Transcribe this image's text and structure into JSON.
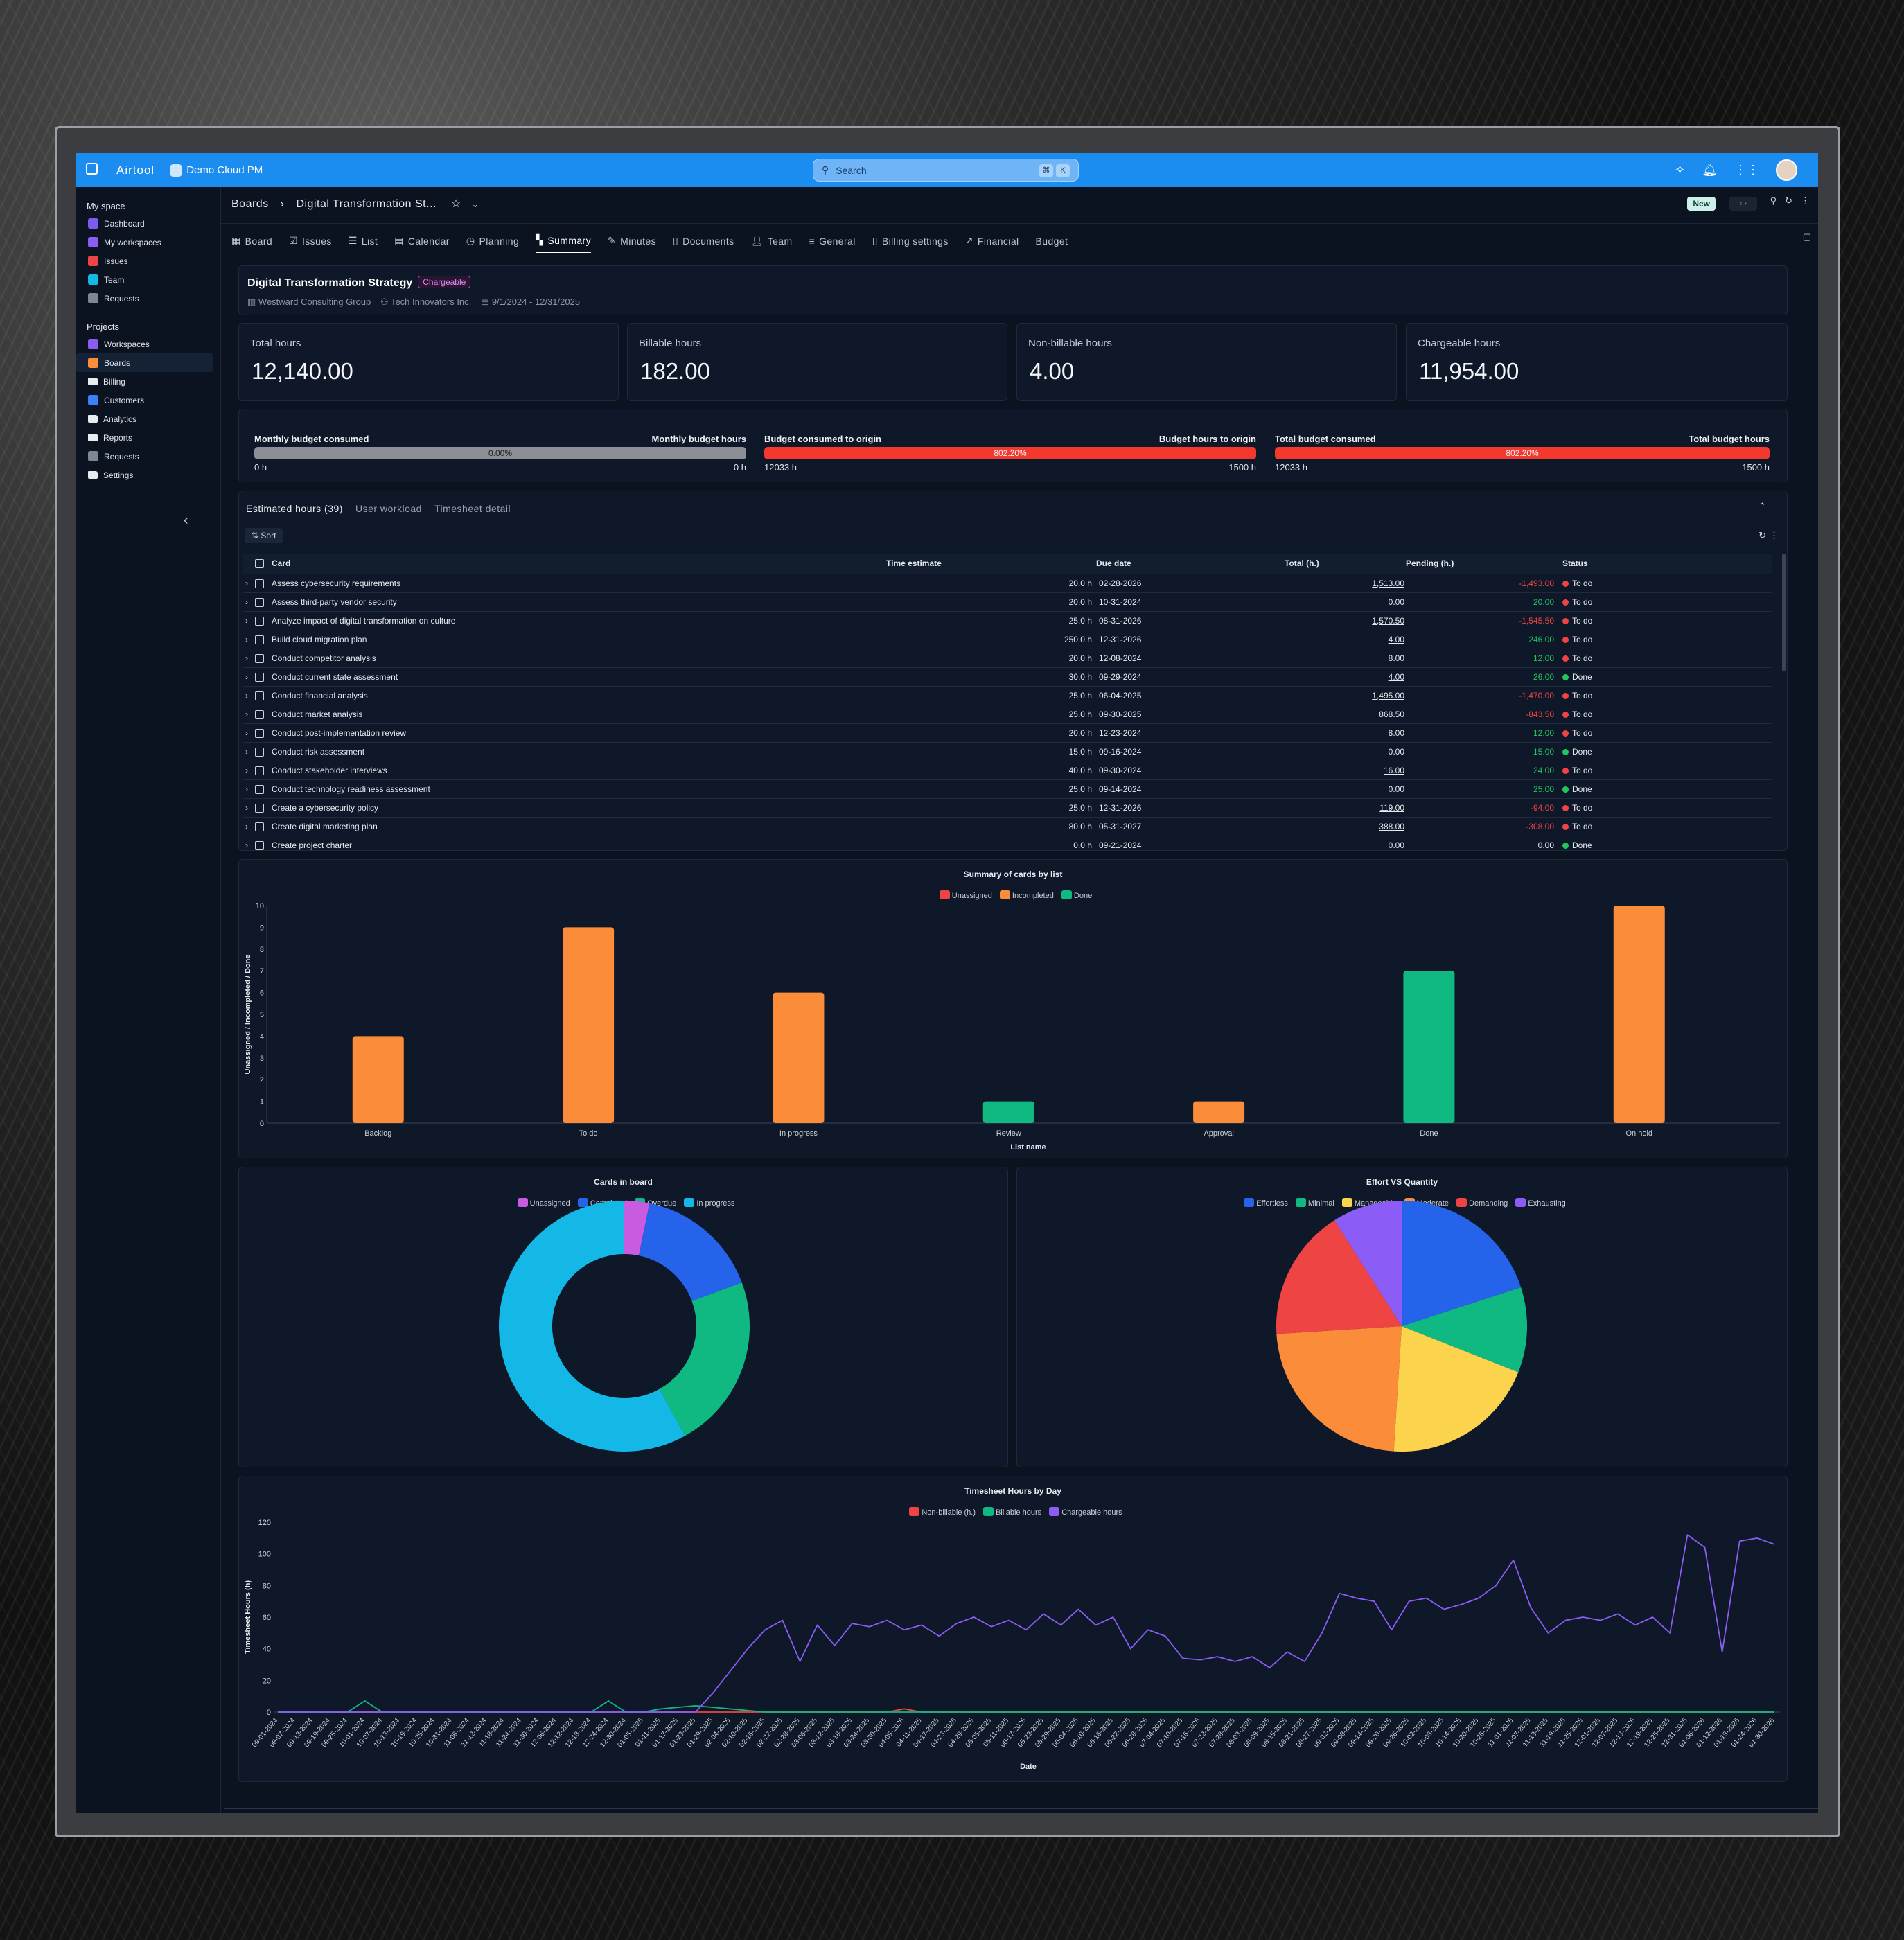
{
  "app": {
    "name": "Airtool",
    "workspace": "Demo Cloud PM",
    "search_placeholder": "Search",
    "kbd1": "⌘",
    "kbd2": "K"
  },
  "sidebar": {
    "my_space": "My space",
    "my_items": [
      "Dashboard",
      "My workspaces",
      "Issues",
      "Team",
      "Requests"
    ],
    "projects": "Projects",
    "project_items": [
      "Workspaces",
      "Boards",
      "Billing",
      "Customers",
      "Analytics",
      "Reports",
      "Requests",
      "Settings"
    ]
  },
  "breadcrumb": {
    "root": "Boards",
    "current": "Digital Transformation St..."
  },
  "new_label": "New",
  "tabs": [
    "Board",
    "Issues",
    "List",
    "Calendar",
    "Planning",
    "Summary",
    "Minutes",
    "Documents",
    "Team",
    "General",
    "Billing settings",
    "Financial",
    "Budget"
  ],
  "project": {
    "title": "Digital Transformation Strategy",
    "badge": "Chargeable",
    "client": "Westward Consulting Group",
    "provider": "Tech Innovators Inc.",
    "dates": "9/1/2024 - 12/31/2025"
  },
  "stats": [
    {
      "label": "Total hours",
      "value": "12,140.00"
    },
    {
      "label": "Billable hours",
      "value": "182.00"
    },
    {
      "label": "Non-billable hours",
      "value": "4.00"
    },
    {
      "label": "Chargeable hours",
      "value": "11,954.00"
    }
  ],
  "budgets": [
    {
      "left": "Monthly budget consumed",
      "right": "Monthly budget hours",
      "bar": "0.00%",
      "pct": 0,
      "from": "0 h",
      "to": "0 h"
    },
    {
      "left": "Budget consumed to origin",
      "right": "Budget hours to origin",
      "bar": "802.20%",
      "pct": 100,
      "from": "12033 h",
      "to": "1500 h"
    },
    {
      "left": "Total budget consumed",
      "right": "Total budget hours",
      "bar": "802.20%",
      "pct": 100,
      "from": "12033 h",
      "to": "1500 h"
    }
  ],
  "subtabs": [
    "Estimated hours (39)",
    "User workload",
    "Timesheet detail"
  ],
  "sort_label": "Sort",
  "table": {
    "headers": [
      "Card",
      "Time estimate",
      "Due date",
      "Total (h.)",
      "Pending (h.)",
      "Status"
    ],
    "rows": [
      [
        "Assess cybersecurity requirements",
        "20.0 h",
        "02-28-2026",
        "1,513.00",
        "-1,493.00",
        "To do"
      ],
      [
        "Assess third-party vendor security",
        "20.0 h",
        "10-31-2024",
        "0.00",
        "20.00",
        "To do"
      ],
      [
        "Analyze impact of digital transformation on culture",
        "25.0 h",
        "08-31-2026",
        "1,570.50",
        "-1,545.50",
        "To do"
      ],
      [
        "Build cloud migration plan",
        "250.0 h",
        "12-31-2026",
        "4.00",
        "246.00",
        "To do"
      ],
      [
        "Conduct competitor analysis",
        "20.0 h",
        "12-08-2024",
        "8.00",
        "12.00",
        "To do"
      ],
      [
        "Conduct current state assessment",
        "30.0 h",
        "09-29-2024",
        "4.00",
        "26.00",
        "Done"
      ],
      [
        "Conduct financial analysis",
        "25.0 h",
        "06-04-2025",
        "1,495.00",
        "-1,470.00",
        "To do"
      ],
      [
        "Conduct market analysis",
        "25.0 h",
        "09-30-2025",
        "868.50",
        "-843.50",
        "To do"
      ],
      [
        "Conduct post-implementation review",
        "20.0 h",
        "12-23-2024",
        "8.00",
        "12.00",
        "To do"
      ],
      [
        "Conduct risk assessment",
        "15.0 h",
        "09-16-2024",
        "0.00",
        "15.00",
        "Done"
      ],
      [
        "Conduct stakeholder interviews",
        "40.0 h",
        "09-30-2024",
        "16.00",
        "24.00",
        "To do"
      ],
      [
        "Conduct technology readiness assessment",
        "25.0 h",
        "09-14-2024",
        "0.00",
        "25.00",
        "Done"
      ],
      [
        "Create a cybersecurity policy",
        "25.0 h",
        "12-31-2026",
        "119.00",
        "-94.00",
        "To do"
      ],
      [
        "Create digital marketing plan",
        "80.0 h",
        "05-31-2027",
        "388.00",
        "-308.00",
        "To do"
      ],
      [
        "Create project charter",
        "0.0 h",
        "09-21-2024",
        "0.00",
        "0.00",
        "Done"
      ]
    ]
  },
  "colors": {
    "red": "#ef4444",
    "orange": "#fb8c3a",
    "green": "#10b981",
    "blue": "#2563eb",
    "cyan": "#14b8e6",
    "purple": "#8b5cf6",
    "magenta": "#c95be0",
    "yellow": "#fcd34d",
    "todo": "#ef4444",
    "done": "#22c55e"
  },
  "chart_data": [
    {
      "type": "bar",
      "title": "Summary of cards by list",
      "xlabel": "List name",
      "ylabel": "Unassigned / Incompleted / Done",
      "categories": [
        "Backlog",
        "To do",
        "In progress",
        "Review",
        "Approval",
        "Done",
        "On hold"
      ],
      "series": [
        {
          "name": "Unassigned",
          "values": [
            0,
            0,
            0,
            0,
            0,
            0,
            0
          ]
        },
        {
          "name": "Incompleted",
          "values": [
            4,
            9,
            6,
            0,
            1,
            0,
            10
          ]
        },
        {
          "name": "Done",
          "values": [
            0,
            0,
            0,
            1,
            0,
            7,
            0
          ]
        }
      ],
      "ylim": [
        0,
        10
      ],
      "yticks": [
        0,
        1,
        2,
        3,
        4,
        5,
        6,
        7,
        8,
        9,
        10
      ],
      "legend": "top"
    },
    {
      "type": "pie",
      "title": "Cards in board",
      "donut": true,
      "labels": [
        "Unassigned",
        "Completed",
        "Overdue",
        "In progress"
      ],
      "values": [
        1,
        5,
        7,
        18
      ],
      "legend": "top"
    },
    {
      "type": "pie",
      "title": "Effort VS Quantity",
      "donut": false,
      "labels": [
        "Effortless",
        "Minimal",
        "Manageable",
        "Moderate",
        "Demanding",
        "Exhausting"
      ],
      "values": [
        20,
        11,
        20,
        23,
        17,
        9
      ],
      "legend": "top"
    },
    {
      "type": "line",
      "title": "Timesheet Hours by Day",
      "xlabel": "Date",
      "ylabel": "Timesheet Hours (h)",
      "ylim": [
        0,
        120
      ],
      "yticks": [
        0,
        20,
        40,
        60,
        80,
        100,
        120
      ],
      "x": [
        "09-01-2024",
        "09-07-2024",
        "09-13-2024",
        "09-19-2024",
        "09-25-2024",
        "10-01-2024",
        "10-07-2024",
        "10-13-2024",
        "10-19-2024",
        "10-25-2024",
        "10-31-2024",
        "11-06-2024",
        "11-12-2024",
        "11-18-2024",
        "11-24-2024",
        "11-30-2024",
        "12-06-2024",
        "12-12-2024",
        "12-18-2024",
        "12-24-2024",
        "12-30-2024",
        "01-05-2025",
        "01-11-2025",
        "01-17-2025",
        "01-23-2025",
        "01-29-2025",
        "02-04-2025",
        "02-10-2025",
        "02-16-2025",
        "02-22-2025",
        "02-28-2025",
        "03-06-2025",
        "03-12-2025",
        "03-18-2025",
        "03-24-2025",
        "03-30-2025",
        "04-05-2025",
        "04-11-2025",
        "04-17-2025",
        "04-23-2025",
        "04-29-2025",
        "05-05-2025",
        "05-11-2025",
        "05-17-2025",
        "05-23-2025",
        "05-29-2025",
        "06-04-2025",
        "06-10-2025",
        "06-16-2025",
        "06-22-2025",
        "06-28-2025",
        "07-04-2025",
        "07-10-2025",
        "07-16-2025",
        "07-22-2025",
        "07-28-2025",
        "08-03-2025",
        "08-09-2025",
        "08-15-2025",
        "08-21-2025",
        "08-27-2025",
        "09-02-2025",
        "09-08-2025",
        "09-14-2025",
        "09-20-2025",
        "09-26-2025",
        "10-02-2025",
        "10-08-2025",
        "10-14-2025",
        "10-20-2025",
        "10-26-2025",
        "11-01-2025",
        "11-07-2025",
        "11-13-2025",
        "11-19-2025",
        "11-25-2025",
        "12-01-2025",
        "12-07-2025",
        "12-13-2025",
        "12-19-2025",
        "12-25-2025",
        "12-31-2025",
        "01-06-2026",
        "01-12-2026",
        "01-18-2026",
        "01-24-2026",
        "01-30-2026"
      ],
      "series": [
        {
          "name": "Non-billable (h.)",
          "values": [
            0,
            0,
            0,
            0,
            0,
            0,
            0,
            0,
            0,
            0,
            0,
            0,
            0,
            0,
            0,
            0,
            0,
            0,
            0,
            0,
            0,
            0,
            0,
            0,
            0,
            0,
            0,
            0,
            0,
            0,
            0,
            0,
            0,
            0,
            0,
            0,
            2,
            0,
            0,
            0,
            0,
            0,
            0,
            0,
            0,
            0,
            0,
            0,
            0,
            0,
            0,
            0,
            0,
            0,
            0,
            0,
            0,
            0,
            0,
            0,
            0,
            0,
            0,
            0,
            0,
            0,
            0,
            0,
            0,
            0,
            0,
            0,
            0,
            0,
            0,
            0,
            0,
            0,
            0,
            0,
            0,
            0,
            0,
            0,
            0,
            0,
            0
          ]
        },
        {
          "name": "Billable hours",
          "values": [
            0,
            0,
            0,
            0,
            0,
            7,
            0,
            0,
            0,
            0,
            0,
            0,
            0,
            0,
            0,
            0,
            0,
            0,
            0,
            7,
            0,
            0,
            2,
            3,
            4,
            3,
            2,
            1,
            0,
            0,
            0,
            0,
            0,
            0,
            0,
            0,
            0,
            0,
            0,
            0,
            0,
            0,
            0,
            0,
            0,
            0,
            0,
            0,
            0,
            0,
            0,
            0,
            0,
            0,
            0,
            0,
            0,
            0,
            0,
            0,
            0,
            0,
            0,
            0,
            0,
            0,
            0,
            0,
            0,
            0,
            0,
            0,
            0,
            0,
            0,
            0,
            0,
            0,
            0,
            0,
            0,
            0,
            0,
            0,
            0,
            0,
            0
          ]
        },
        {
          "name": "Chargeable hours",
          "values": [
            0,
            0,
            0,
            0,
            0,
            0,
            0,
            0,
            0,
            0,
            0,
            0,
            0,
            0,
            0,
            0,
            0,
            0,
            0,
            0,
            0,
            0,
            0,
            0,
            0,
            12,
            26,
            40,
            52,
            58,
            32,
            55,
            42,
            56,
            54,
            58,
            52,
            55,
            48,
            56,
            60,
            54,
            58,
            52,
            62,
            55,
            65,
            55,
            60,
            40,
            52,
            48,
            34,
            33,
            35,
            32,
            35,
            28,
            38,
            32,
            50,
            75,
            72,
            70,
            52,
            70,
            72,
            65,
            68,
            72,
            80,
            96,
            66,
            50,
            58,
            60,
            58,
            62,
            55,
            60,
            50,
            112,
            104,
            38,
            108,
            110,
            106
          ]
        }
      ],
      "legend": "top"
    }
  ]
}
